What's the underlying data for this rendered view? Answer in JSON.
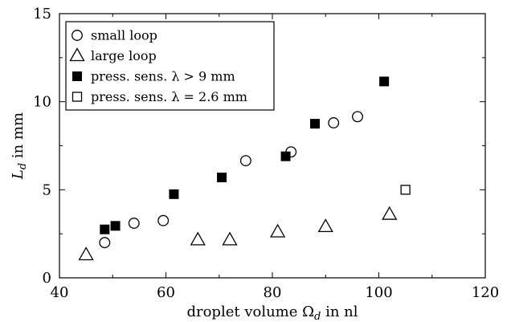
{
  "chart_data": {
    "type": "scatter",
    "xlabel": "droplet volume Ω",
    "xlabel_sub": "d",
    "xlabel_suffix": " in nl",
    "ylabel": "L",
    "ylabel_sub": "d",
    "ylabel_suffix": " in mm",
    "xlim": [
      40,
      120
    ],
    "ylim": [
      0,
      15
    ],
    "xticks": [
      40,
      60,
      80,
      100,
      120
    ],
    "yticks": [
      0,
      5,
      10,
      15
    ],
    "grid": false,
    "legend_position": "top-left",
    "series": [
      {
        "name": "small loop",
        "marker": "open-circle",
        "color": "#000000",
        "points": [
          [
            48.5,
            2.0
          ],
          [
            54,
            3.1
          ],
          [
            59.5,
            3.25
          ],
          [
            75,
            6.65
          ],
          [
            83.5,
            7.15
          ],
          [
            91.5,
            8.8
          ],
          [
            96,
            9.15
          ]
        ]
      },
      {
        "name": "large loop",
        "marker": "open-triangle",
        "color": "#000000",
        "points": [
          [
            45,
            1.3
          ],
          [
            66,
            2.15
          ],
          [
            72,
            2.15
          ],
          [
            81,
            2.6
          ],
          [
            90,
            2.9
          ],
          [
            102,
            3.6
          ]
        ]
      },
      {
        "name": "press. sens. λ > 9 mm",
        "marker": "filled-square",
        "color": "#000000",
        "points": [
          [
            48.5,
            2.75
          ],
          [
            50.5,
            2.95
          ],
          [
            61.5,
            4.75
          ],
          [
            70.5,
            5.7
          ],
          [
            82.5,
            6.9
          ],
          [
            88,
            8.75
          ],
          [
            101,
            11.15
          ]
        ]
      },
      {
        "name": "press. sens. λ = 2.6 mm",
        "marker": "open-square",
        "color": "#000000",
        "points": [
          [
            105,
            5.0
          ]
        ]
      }
    ]
  }
}
